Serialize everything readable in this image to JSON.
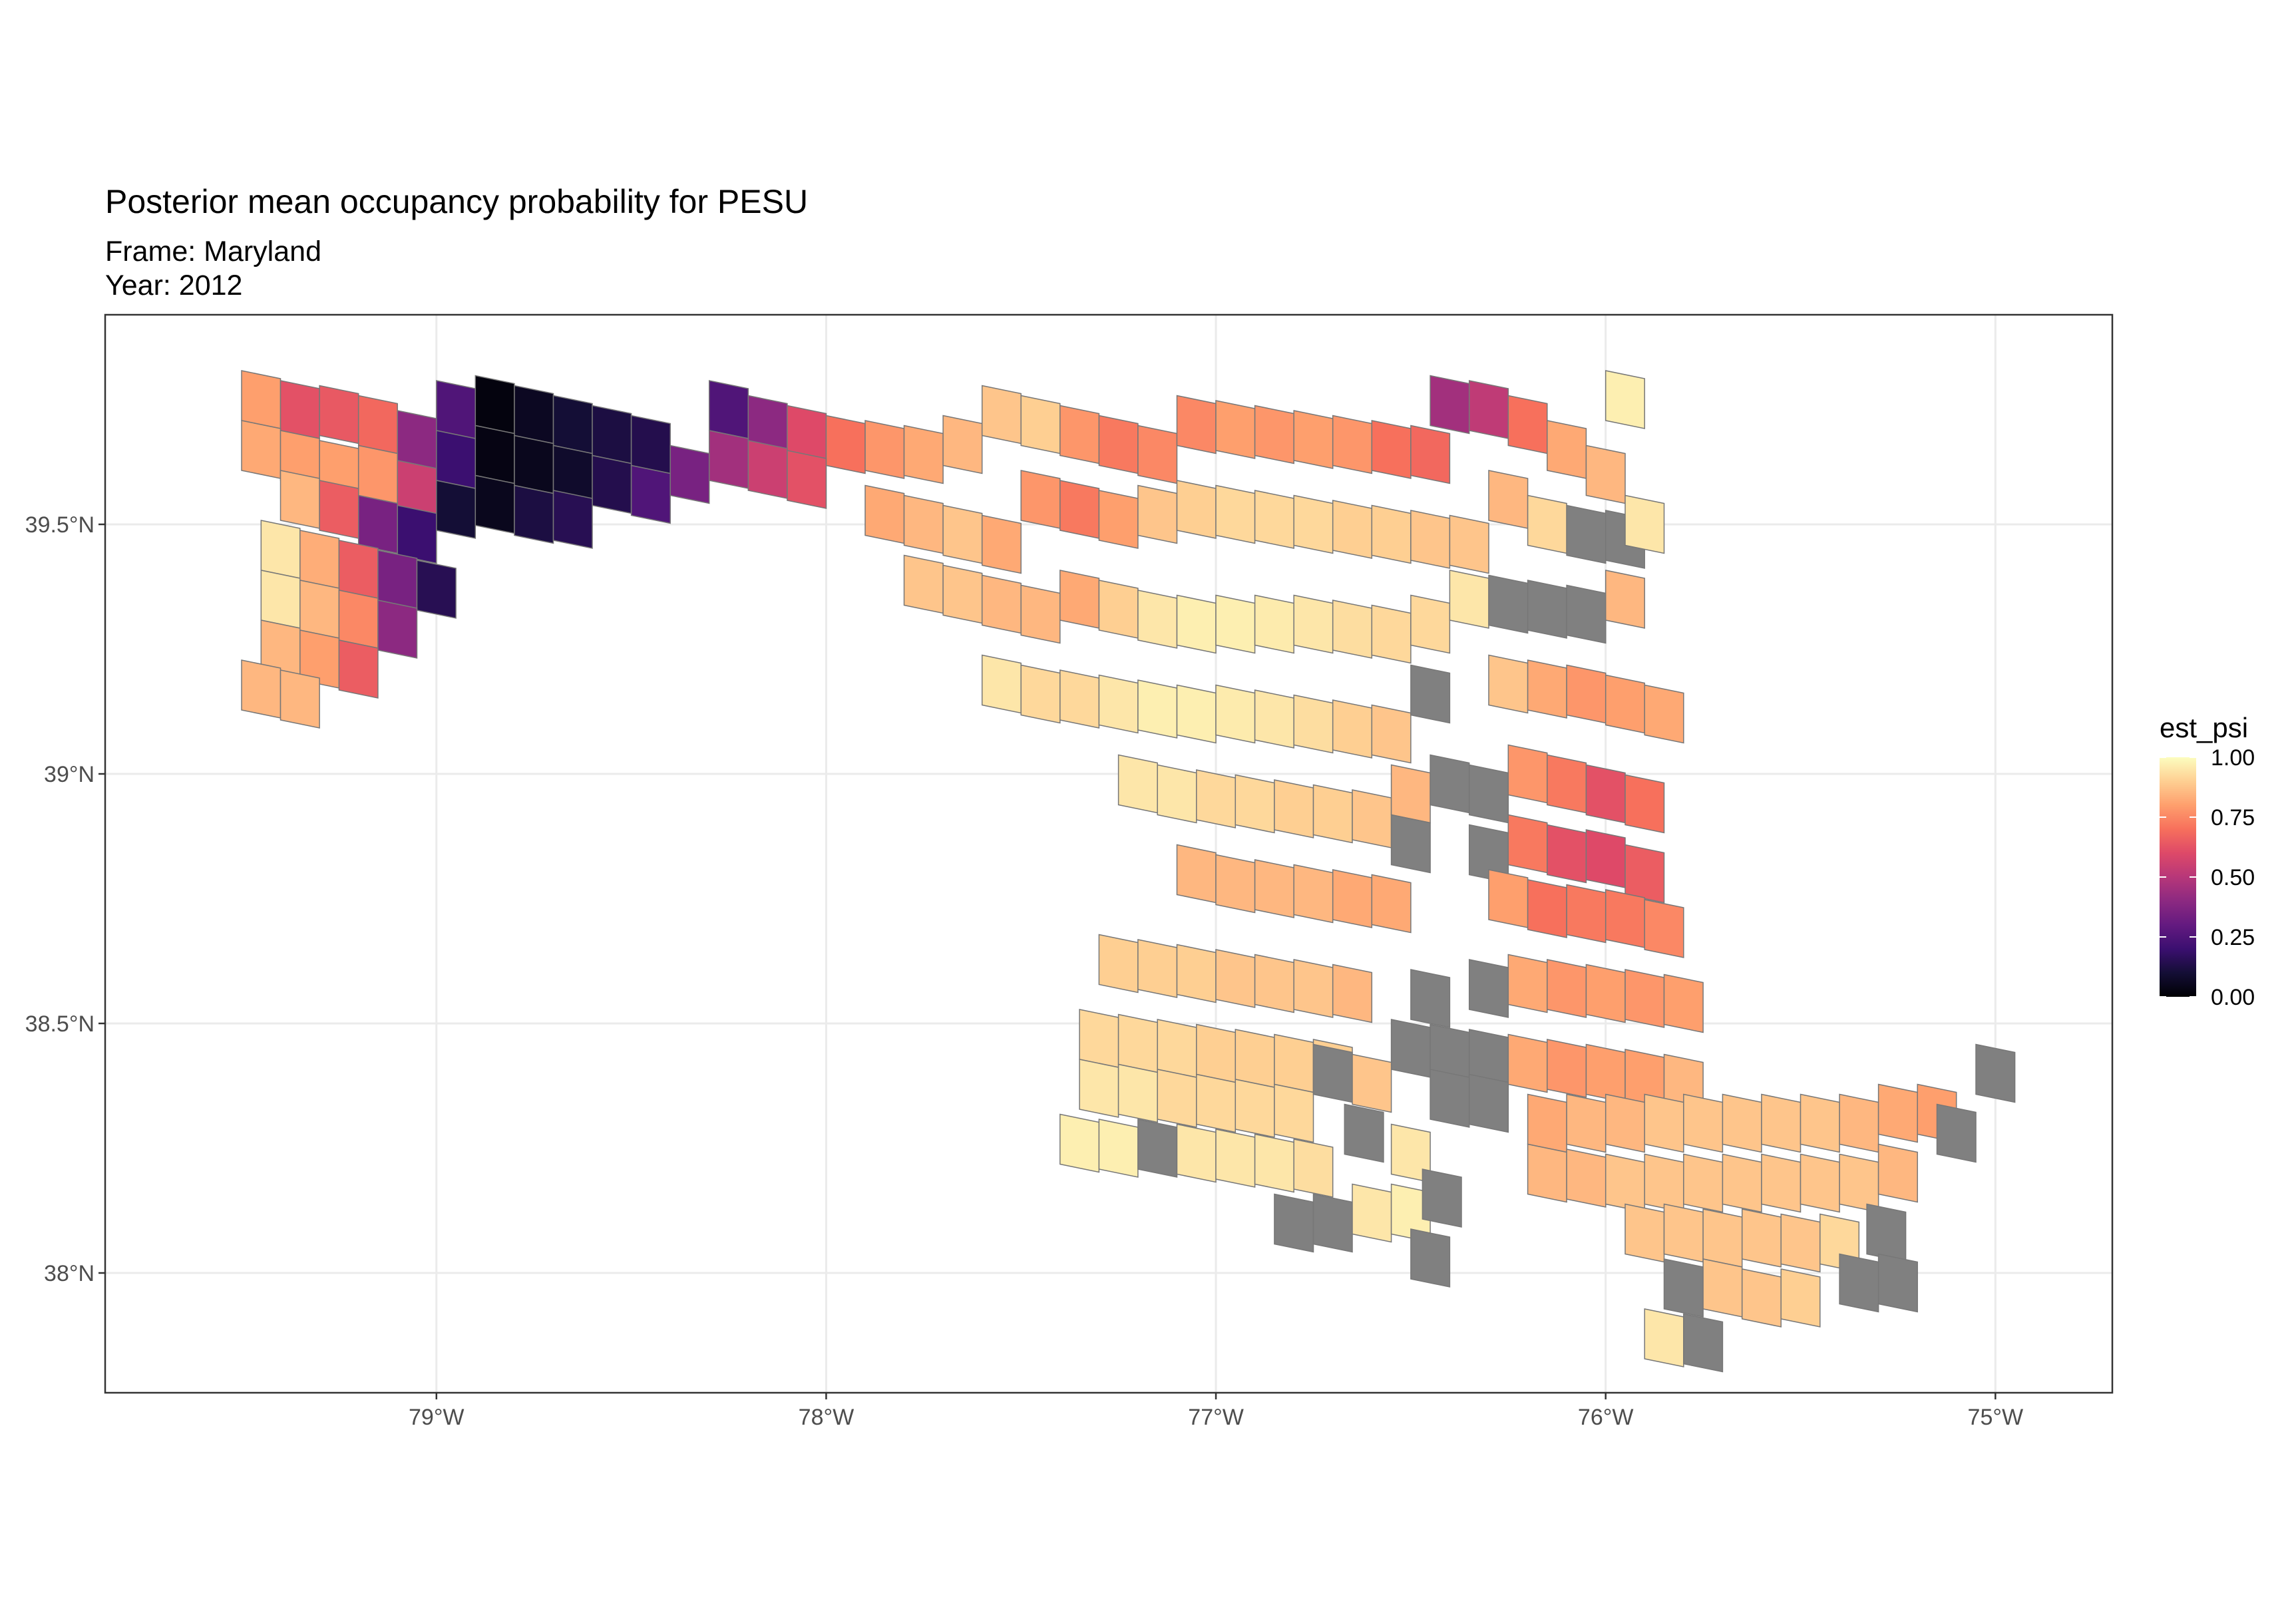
{
  "chart_data": {
    "type": "heatmap",
    "title": "Posterior mean occupancy probability for PESU",
    "subtitle_lines": [
      "Frame: Maryland",
      "Year: 2012"
    ],
    "xlabel": "",
    "ylabel": "",
    "x_ticks": [
      "79°W",
      "78°W",
      "77°W",
      "76°W",
      "75°W"
    ],
    "x_tick_values": [
      -79,
      -78,
      -77,
      -76,
      -75
    ],
    "y_ticks": [
      "38°N",
      "38.5°N",
      "39°N",
      "39.5°N"
    ],
    "y_tick_values": [
      38,
      38.5,
      39,
      39.5
    ],
    "xlim": [
      -79.85,
      -74.7
    ],
    "ylim": [
      37.76,
      39.92
    ],
    "grid": true,
    "legend": {
      "title": "est_psi",
      "placement": "right",
      "tick_labels": [
        "1.00",
        "0.75",
        "0.50",
        "0.25",
        "0.00"
      ],
      "range": [
        0,
        1
      ],
      "palette": "magma",
      "missing_color": "#808080"
    },
    "cells": [
      [
        -79.45,
        39.75,
        0.8
      ],
      [
        -79.35,
        39.73,
        0.62
      ],
      [
        -79.25,
        39.72,
        0.64
      ],
      [
        -79.15,
        39.7,
        0.68
      ],
      [
        -79.05,
        39.67,
        0.4
      ],
      [
        -78.95,
        39.73,
        0.25
      ],
      [
        -78.85,
        39.74,
        0.02
      ],
      [
        -78.75,
        39.72,
        0.06
      ],
      [
        -78.65,
        39.7,
        0.1
      ],
      [
        -78.55,
        39.68,
        0.12
      ],
      [
        -78.45,
        39.66,
        0.14
      ],
      [
        -78.25,
        39.73,
        0.25
      ],
      [
        -78.15,
        39.7,
        0.4
      ],
      [
        -78.05,
        39.68,
        0.6
      ],
      [
        -77.95,
        39.66,
        0.7
      ],
      [
        -79.45,
        39.65,
        0.82
      ],
      [
        -79.35,
        39.63,
        0.8
      ],
      [
        -79.25,
        39.61,
        0.8
      ],
      [
        -79.15,
        39.6,
        0.78
      ],
      [
        -79.05,
        39.57,
        0.55
      ],
      [
        -78.95,
        39.63,
        0.2
      ],
      [
        -78.85,
        39.64,
        0.03
      ],
      [
        -78.75,
        39.62,
        0.05
      ],
      [
        -78.65,
        39.6,
        0.08
      ],
      [
        -78.55,
        39.58,
        0.14
      ],
      [
        -78.45,
        39.56,
        0.25
      ],
      [
        -78.35,
        39.6,
        0.35
      ],
      [
        -78.25,
        39.63,
        0.45
      ],
      [
        -78.15,
        39.61,
        0.55
      ],
      [
        -78.05,
        39.59,
        0.62
      ],
      [
        -79.35,
        39.55,
        0.85
      ],
      [
        -79.25,
        39.53,
        0.65
      ],
      [
        -79.15,
        39.5,
        0.35
      ],
      [
        -79.05,
        39.48,
        0.2
      ],
      [
        -78.95,
        39.53,
        0.1
      ],
      [
        -78.85,
        39.54,
        0.05
      ],
      [
        -78.75,
        39.52,
        0.12
      ],
      [
        -78.65,
        39.51,
        0.15
      ],
      [
        -79.4,
        39.45,
        0.95
      ],
      [
        -79.3,
        39.43,
        0.83
      ],
      [
        -79.2,
        39.41,
        0.65
      ],
      [
        -79.1,
        39.39,
        0.35
      ],
      [
        -79.0,
        39.37,
        0.15
      ],
      [
        -79.4,
        39.35,
        0.95
      ],
      [
        -79.3,
        39.33,
        0.85
      ],
      [
        -79.2,
        39.31,
        0.75
      ],
      [
        -79.1,
        39.29,
        0.4
      ],
      [
        -79.4,
        39.25,
        0.85
      ],
      [
        -79.3,
        39.23,
        0.8
      ],
      [
        -79.2,
        39.21,
        0.65
      ],
      [
        -79.45,
        39.17,
        0.85
      ],
      [
        -79.35,
        39.15,
        0.85
      ],
      [
        -77.85,
        39.65,
        0.78
      ],
      [
        -77.75,
        39.64,
        0.82
      ],
      [
        -77.65,
        39.66,
        0.85
      ],
      [
        -77.55,
        39.72,
        0.88
      ],
      [
        -77.45,
        39.7,
        0.9
      ],
      [
        -77.35,
        39.68,
        0.78
      ],
      [
        -77.25,
        39.66,
        0.72
      ],
      [
        -77.15,
        39.64,
        0.75
      ],
      [
        -77.05,
        39.7,
        0.75
      ],
      [
        -76.95,
        39.69,
        0.8
      ],
      [
        -76.85,
        39.68,
        0.78
      ],
      [
        -76.75,
        39.67,
        0.8
      ],
      [
        -76.65,
        39.66,
        0.78
      ],
      [
        -76.55,
        39.65,
        0.7
      ],
      [
        -76.45,
        39.64,
        0.68
      ],
      [
        -76.4,
        39.74,
        0.45
      ],
      [
        -76.3,
        39.73,
        0.52
      ],
      [
        -76.2,
        39.7,
        0.7
      ],
      [
        -76.1,
        39.65,
        0.82
      ],
      [
        -76.0,
        39.6,
        0.85
      ],
      [
        -75.95,
        39.75,
        0.97
      ],
      [
        -77.85,
        39.52,
        0.82
      ],
      [
        -77.75,
        39.5,
        0.85
      ],
      [
        -77.65,
        39.48,
        0.88
      ],
      [
        -77.55,
        39.46,
        0.82
      ],
      [
        -77.45,
        39.55,
        0.78
      ],
      [
        -77.35,
        39.53,
        0.72
      ],
      [
        -77.25,
        39.51,
        0.8
      ],
      [
        -77.15,
        39.52,
        0.88
      ],
      [
        -77.05,
        39.53,
        0.9
      ],
      [
        -76.95,
        39.52,
        0.92
      ],
      [
        -76.85,
        39.51,
        0.92
      ],
      [
        -76.75,
        39.5,
        0.92
      ],
      [
        -76.65,
        39.49,
        0.9
      ],
      [
        -76.55,
        39.48,
        0.9
      ],
      [
        -76.45,
        39.47,
        0.88
      ],
      [
        -76.35,
        39.46,
        0.88
      ],
      [
        -76.25,
        39.55,
        0.85
      ],
      [
        -76.15,
        39.5,
        0.92
      ],
      [
        -76.05,
        39.48,
        null
      ],
      [
        -75.95,
        39.47,
        null
      ],
      [
        -75.9,
        39.5,
        0.95
      ],
      [
        -77.75,
        39.38,
        0.88
      ],
      [
        -77.65,
        39.36,
        0.88
      ],
      [
        -77.55,
        39.34,
        0.85
      ],
      [
        -77.45,
        39.32,
        0.85
      ],
      [
        -77.35,
        39.35,
        0.82
      ],
      [
        -77.25,
        39.33,
        0.9
      ],
      [
        -77.15,
        39.31,
        0.95
      ],
      [
        -77.05,
        39.3,
        0.97
      ],
      [
        -76.95,
        39.3,
        0.97
      ],
      [
        -76.85,
        39.3,
        0.96
      ],
      [
        -76.75,
        39.3,
        0.95
      ],
      [
        -76.65,
        39.29,
        0.93
      ],
      [
        -76.55,
        39.28,
        0.92
      ],
      [
        -76.45,
        39.3,
        0.92
      ],
      [
        -76.35,
        39.35,
        0.95
      ],
      [
        -76.25,
        39.34,
        null
      ],
      [
        -76.15,
        39.33,
        null
      ],
      [
        -76.05,
        39.32,
        null
      ],
      [
        -75.95,
        39.35,
        0.85
      ],
      [
        -77.55,
        39.18,
        0.95
      ],
      [
        -77.45,
        39.16,
        0.92
      ],
      [
        -77.35,
        39.15,
        0.92
      ],
      [
        -77.25,
        39.14,
        0.95
      ],
      [
        -77.15,
        39.13,
        0.97
      ],
      [
        -77.05,
        39.12,
        0.97
      ],
      [
        -76.95,
        39.12,
        0.96
      ],
      [
        -76.85,
        39.11,
        0.95
      ],
      [
        -76.75,
        39.1,
        0.93
      ],
      [
        -76.65,
        39.09,
        0.9
      ],
      [
        -76.55,
        39.08,
        0.88
      ],
      [
        -76.45,
        39.16,
        null
      ],
      [
        -76.25,
        39.18,
        0.88
      ],
      [
        -76.15,
        39.17,
        0.82
      ],
      [
        -76.05,
        39.16,
        0.78
      ],
      [
        -75.95,
        39.14,
        0.8
      ],
      [
        -75.85,
        39.12,
        0.82
      ],
      [
        -77.2,
        38.98,
        0.95
      ],
      [
        -77.1,
        38.96,
        0.95
      ],
      [
        -77.0,
        38.95,
        0.92
      ],
      [
        -76.9,
        38.94,
        0.92
      ],
      [
        -76.8,
        38.93,
        0.9
      ],
      [
        -76.7,
        38.92,
        0.9
      ],
      [
        -76.6,
        38.91,
        0.88
      ],
      [
        -76.5,
        38.96,
        0.85
      ],
      [
        -76.4,
        38.98,
        null
      ],
      [
        -76.3,
        38.96,
        null
      ],
      [
        -76.2,
        39.0,
        0.78
      ],
      [
        -76.1,
        38.98,
        0.72
      ],
      [
        -76.0,
        38.96,
        0.62
      ],
      [
        -75.9,
        38.94,
        0.7
      ],
      [
        -76.5,
        38.86,
        null
      ],
      [
        -76.3,
        38.84,
        null
      ],
      [
        -76.2,
        38.86,
        0.72
      ],
      [
        -76.1,
        38.84,
        0.62
      ],
      [
        -76.0,
        38.83,
        0.6
      ],
      [
        -75.9,
        38.8,
        0.65
      ],
      [
        -77.05,
        38.8,
        0.85
      ],
      [
        -76.95,
        38.78,
        0.85
      ],
      [
        -76.85,
        38.77,
        0.85
      ],
      [
        -76.75,
        38.76,
        0.85
      ],
      [
        -76.65,
        38.75,
        0.82
      ],
      [
        -76.55,
        38.74,
        0.82
      ],
      [
        -76.25,
        38.75,
        0.8
      ],
      [
        -76.15,
        38.73,
        0.7
      ],
      [
        -76.05,
        38.72,
        0.72
      ],
      [
        -75.95,
        38.71,
        0.72
      ],
      [
        -75.85,
        38.69,
        0.75
      ],
      [
        -77.25,
        38.62,
        0.9
      ],
      [
        -77.15,
        38.61,
        0.9
      ],
      [
        -77.05,
        38.6,
        0.9
      ],
      [
        -76.95,
        38.59,
        0.88
      ],
      [
        -76.85,
        38.58,
        0.88
      ],
      [
        -76.75,
        38.57,
        0.88
      ],
      [
        -76.65,
        38.56,
        0.85
      ],
      [
        -76.45,
        38.55,
        null
      ],
      [
        -76.3,
        38.57,
        null
      ],
      [
        -76.2,
        38.58,
        0.82
      ],
      [
        -76.1,
        38.57,
        0.78
      ],
      [
        -76.0,
        38.56,
        0.8
      ],
      [
        -75.9,
        38.55,
        0.78
      ],
      [
        -75.8,
        38.54,
        0.8
      ],
      [
        -77.3,
        38.47,
        0.92
      ],
      [
        -77.2,
        38.46,
        0.92
      ],
      [
        -77.1,
        38.45,
        0.92
      ],
      [
        -77.0,
        38.44,
        0.9
      ],
      [
        -76.9,
        38.43,
        0.9
      ],
      [
        -76.8,
        38.42,
        0.9
      ],
      [
        -76.7,
        38.41,
        0.9
      ],
      [
        -76.5,
        38.45,
        null
      ],
      [
        -76.4,
        38.44,
        null
      ],
      [
        -76.3,
        38.43,
        null
      ],
      [
        -76.2,
        38.42,
        0.82
      ],
      [
        -76.1,
        38.41,
        0.78
      ],
      [
        -76.0,
        38.4,
        0.8
      ],
      [
        -75.9,
        38.39,
        0.8
      ],
      [
        -75.8,
        38.38,
        0.85
      ],
      [
        -77.3,
        38.37,
        0.95
      ],
      [
        -77.2,
        38.36,
        0.95
      ],
      [
        -77.1,
        38.35,
        0.92
      ],
      [
        -77.0,
        38.34,
        0.92
      ],
      [
        -76.9,
        38.33,
        0.92
      ],
      [
        -76.8,
        38.32,
        0.92
      ],
      [
        -76.7,
        38.4,
        null
      ],
      [
        -76.6,
        38.38,
        0.88
      ],
      [
        -76.4,
        38.35,
        null
      ],
      [
        -76.3,
        38.34,
        null
      ],
      [
        -76.15,
        38.3,
        0.82
      ],
      [
        -76.05,
        38.3,
        0.85
      ],
      [
        -75.95,
        38.3,
        0.85
      ],
      [
        -75.85,
        38.3,
        0.88
      ],
      [
        -75.75,
        38.3,
        0.88
      ],
      [
        -75.65,
        38.3,
        0.88
      ],
      [
        -75.55,
        38.3,
        0.88
      ],
      [
        -75.45,
        38.3,
        0.88
      ],
      [
        -75.35,
        38.3,
        0.85
      ],
      [
        -75.25,
        38.32,
        0.82
      ],
      [
        -75.15,
        38.32,
        0.8
      ],
      [
        -75.0,
        38.4,
        null
      ],
      [
        -77.35,
        38.26,
        0.97
      ],
      [
        -77.25,
        38.25,
        0.97
      ],
      [
        -77.15,
        38.25,
        null
      ],
      [
        -77.05,
        38.24,
        0.95
      ],
      [
        -76.95,
        38.23,
        0.95
      ],
      [
        -76.85,
        38.22,
        0.95
      ],
      [
        -76.75,
        38.21,
        0.93
      ],
      [
        -76.62,
        38.28,
        null
      ],
      [
        -76.5,
        38.24,
        0.95
      ],
      [
        -76.15,
        38.2,
        0.85
      ],
      [
        -76.05,
        38.19,
        0.85
      ],
      [
        -75.95,
        38.18,
        0.88
      ],
      [
        -75.85,
        38.18,
        0.88
      ],
      [
        -75.75,
        38.18,
        0.88
      ],
      [
        -75.65,
        38.18,
        0.88
      ],
      [
        -75.55,
        38.18,
        0.88
      ],
      [
        -75.45,
        38.18,
        0.88
      ],
      [
        -75.35,
        38.18,
        0.88
      ],
      [
        -75.25,
        38.2,
        0.85
      ],
      [
        -75.1,
        38.28,
        null
      ],
      [
        -76.8,
        38.1,
        null
      ],
      [
        -76.7,
        38.1,
        null
      ],
      [
        -76.6,
        38.12,
        0.95
      ],
      [
        -76.5,
        38.12,
        0.97
      ],
      [
        -76.42,
        38.15,
        null
      ],
      [
        -75.9,
        38.08,
        0.88
      ],
      [
        -75.8,
        38.08,
        0.88
      ],
      [
        -75.7,
        38.07,
        0.88
      ],
      [
        -75.6,
        38.07,
        0.88
      ],
      [
        -75.5,
        38.06,
        0.88
      ],
      [
        -75.4,
        38.06,
        0.92
      ],
      [
        -75.28,
        38.08,
        null
      ],
      [
        -76.45,
        38.03,
        null
      ],
      [
        -75.8,
        37.97,
        null
      ],
      [
        -75.7,
        37.97,
        0.88
      ],
      [
        -75.6,
        37.95,
        0.88
      ],
      [
        -75.5,
        37.95,
        0.9
      ],
      [
        -75.35,
        37.98,
        null
      ],
      [
        -75.25,
        37.98,
        null
      ],
      [
        -75.85,
        37.87,
        0.95
      ],
      [
        -75.75,
        37.86,
        null
      ]
    ]
  }
}
